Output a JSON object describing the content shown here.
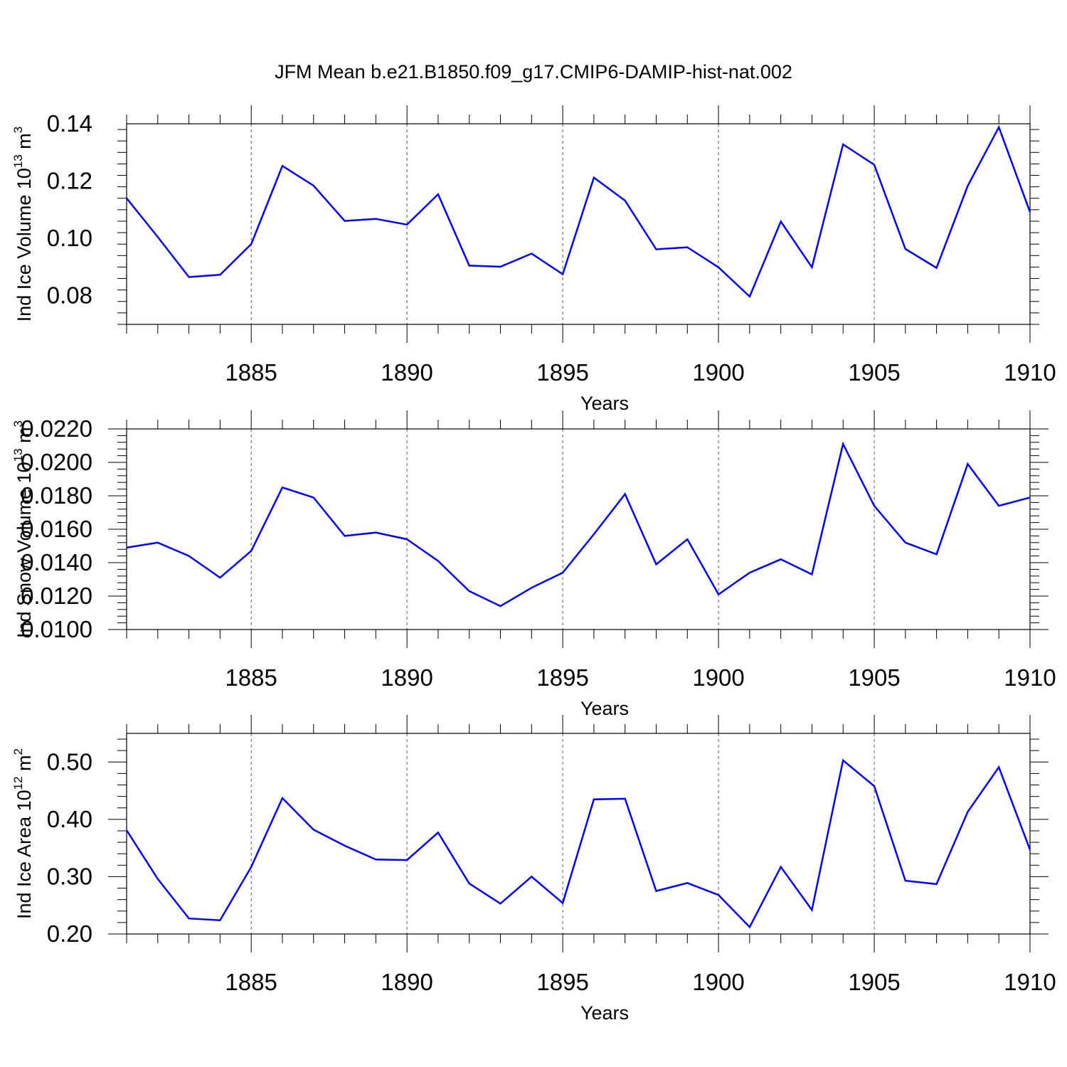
{
  "title": "JFM Mean b.e21.B1850.f09_g17.CMIP6-DAMIP-hist-nat.002",
  "line_color": "#0000ff",
  "chart_data": [
    {
      "type": "line",
      "ylabel": "Ind Ice Volume 10",
      "ylabel_exp": "13",
      "ylabel_unit": " m",
      "ylabel_unit_exp": "3",
      "xlabel": "Years",
      "xlim": [
        1881,
        1910
      ],
      "ylim": [
        0.07,
        0.14
      ],
      "xticks": [
        1885,
        1890,
        1895,
        1900,
        1905,
        1910
      ],
      "xtick_labels": [
        "1885",
        "1890",
        "1895",
        "1900",
        "1905",
        "1910"
      ],
      "yticks": [
        0.08,
        0.1,
        0.12,
        0.14
      ],
      "ytick_labels": [
        "0.08",
        "0.10",
        "0.12",
        "0.14"
      ],
      "grid": "vertical dashed",
      "x": [
        1881,
        1882,
        1883,
        1884,
        1885,
        1886,
        1887,
        1888,
        1889,
        1890,
        1891,
        1892,
        1893,
        1894,
        1895,
        1896,
        1897,
        1898,
        1899,
        1900,
        1901,
        1902,
        1903,
        1904,
        1905,
        1906,
        1907,
        1908,
        1909,
        1910
      ],
      "values": [
        0.114,
        0.1005,
        0.0865,
        0.0873,
        0.098,
        0.1253,
        0.1184,
        0.1061,
        0.1068,
        0.1048,
        0.1154,
        0.0905,
        0.0901,
        0.0947,
        0.0875,
        0.1212,
        0.1132,
        0.0962,
        0.0969,
        0.0899,
        0.0797,
        0.1059,
        0.0899,
        0.1328,
        0.1257,
        0.0963,
        0.0897,
        0.1183,
        0.1388,
        0.1092
      ]
    },
    {
      "type": "line",
      "ylabel": "Ind Snow Volume 10",
      "ylabel_exp": "13",
      "ylabel_unit": " m",
      "ylabel_unit_exp": "3",
      "xlabel": "Years",
      "xlim": [
        1881,
        1910
      ],
      "ylim": [
        0.01,
        0.022
      ],
      "xticks": [
        1885,
        1890,
        1895,
        1900,
        1905,
        1910
      ],
      "xtick_labels": [
        "1885",
        "1890",
        "1895",
        "1900",
        "1905",
        "1910"
      ],
      "yticks": [
        0.01,
        0.012,
        0.014,
        0.016,
        0.018,
        0.02,
        0.022
      ],
      "ytick_labels": [
        "0.0100",
        "0.0120",
        "0.0140",
        "0.0160",
        "0.0180",
        "0.0200",
        "0.0220"
      ],
      "grid": "vertical dashed",
      "x": [
        1881,
        1882,
        1883,
        1884,
        1885,
        1886,
        1887,
        1888,
        1889,
        1890,
        1891,
        1892,
        1893,
        1894,
        1895,
        1896,
        1897,
        1898,
        1899,
        1900,
        1901,
        1902,
        1903,
        1904,
        1905,
        1906,
        1907,
        1908,
        1909,
        1910
      ],
      "values": [
        0.0149,
        0.0152,
        0.0144,
        0.0131,
        0.0147,
        0.0185,
        0.0179,
        0.0156,
        0.0158,
        0.0154,
        0.0141,
        0.0123,
        0.0114,
        0.0125,
        0.0134,
        0.0157,
        0.0181,
        0.0139,
        0.0154,
        0.0121,
        0.0134,
        0.0142,
        0.0133,
        0.0211,
        0.0174,
        0.0152,
        0.0145,
        0.0199,
        0.0174,
        0.0179
      ]
    },
    {
      "type": "line",
      "ylabel": "Ind Ice Area 10",
      "ylabel_exp": "12",
      "ylabel_unit": " m",
      "ylabel_unit_exp": "2",
      "xlabel": "Years",
      "xlim": [
        1881,
        1910
      ],
      "ylim": [
        0.2,
        0.55
      ],
      "xticks": [
        1885,
        1890,
        1895,
        1900,
        1905,
        1910
      ],
      "xtick_labels": [
        "1885",
        "1890",
        "1895",
        "1900",
        "1905",
        "1910"
      ],
      "yticks": [
        0.2,
        0.3,
        0.4,
        0.5
      ],
      "ytick_labels": [
        "0.20",
        "0.30",
        "0.40",
        "0.50"
      ],
      "grid": "vertical dashed",
      "x": [
        1881,
        1882,
        1883,
        1884,
        1885,
        1886,
        1887,
        1888,
        1889,
        1890,
        1891,
        1892,
        1893,
        1894,
        1895,
        1896,
        1897,
        1898,
        1899,
        1900,
        1901,
        1902,
        1903,
        1904,
        1905,
        1906,
        1907,
        1908,
        1909,
        1910
      ],
      "values": [
        0.381,
        0.296,
        0.227,
        0.224,
        0.317,
        0.437,
        0.382,
        0.354,
        0.33,
        0.329,
        0.377,
        0.288,
        0.253,
        0.3,
        0.254,
        0.435,
        0.436,
        0.275,
        0.289,
        0.268,
        0.212,
        0.317,
        0.242,
        0.503,
        0.458,
        0.293,
        0.287,
        0.413,
        0.491,
        0.347
      ]
    }
  ]
}
